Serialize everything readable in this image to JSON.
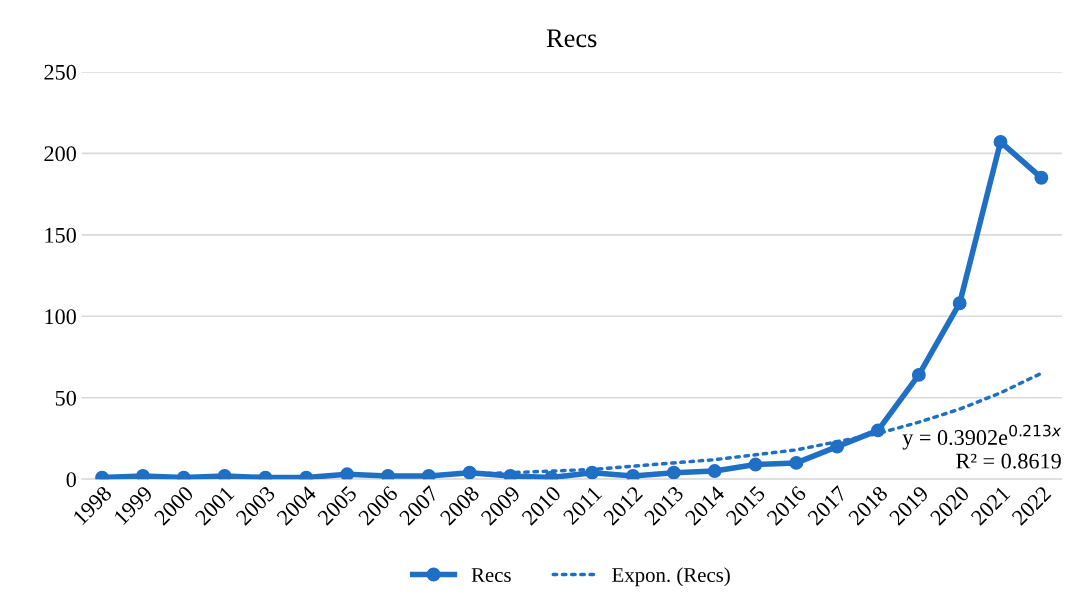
{
  "chart_data": {
    "type": "line",
    "title": "Recs",
    "categories": [
      "1998",
      "1999",
      "2000",
      "2001",
      "2003",
      "2004",
      "2005",
      "2006",
      "2007",
      "2008",
      "2009",
      "2010",
      "2011",
      "2012",
      "2013",
      "2014",
      "2015",
      "2016",
      "2017",
      "2018",
      "2019",
      "2020",
      "2021",
      "2022"
    ],
    "series": [
      {
        "name": "Recs",
        "color": "#1f6fc5",
        "marker": "circle",
        "line_style": "solid",
        "values": [
          1,
          2,
          1,
          2,
          1,
          1,
          3,
          2,
          2,
          4,
          2,
          1,
          4,
          2,
          4,
          5,
          9,
          10,
          20,
          30,
          64,
          108,
          207,
          185
        ]
      },
      {
        "name": "Expon. (Recs)",
        "color": "#1f6fc5",
        "marker": "none",
        "line_style": "dotted",
        "values": [
          null,
          null,
          null,
          null,
          null,
          null,
          null,
          null,
          null,
          3,
          4,
          5,
          6,
          8,
          10,
          12,
          15,
          18,
          23,
          28,
          35,
          43,
          53,
          65
        ]
      }
    ],
    "ylim": [
      0,
      250
    ],
    "yticks": [
      0,
      50,
      100,
      150,
      200,
      250
    ],
    "grid": "y",
    "legend": "bottom",
    "annotations": [
      "y = 0.3902e$^{0.213x}$\nR² = 0.8619"
    ]
  }
}
